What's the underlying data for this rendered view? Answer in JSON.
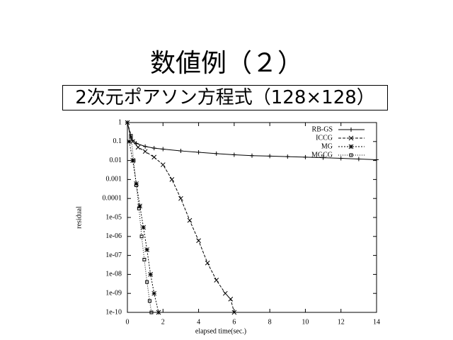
{
  "title": "数値例（２）",
  "subtitle": "2次元ポアソン方程式（128×128）",
  "chart_data": {
    "type": "line",
    "xlabel": "elapsed time(sec.)",
    "ylabel": "residual",
    "xlim": [
      0,
      14
    ],
    "ylim": [
      1e-10,
      1
    ],
    "ylog": true,
    "xticks": [
      0,
      2,
      4,
      6,
      8,
      10,
      12,
      14
    ],
    "yticks": [
      {
        "value": 1e-10,
        "label": "1e-10"
      },
      {
        "value": 1e-09,
        "label": "1e-09"
      },
      {
        "value": 1e-08,
        "label": "1e-08"
      },
      {
        "value": 1e-07,
        "label": "1e-07"
      },
      {
        "value": 1e-06,
        "label": "1e-06"
      },
      {
        "value": 1e-05,
        "label": "1e-05"
      },
      0.0001,
      0.001,
      0.01,
      0.1,
      1
    ],
    "legend": "upper right",
    "series": [
      {
        "name": "RB-GS",
        "color": "#000000",
        "marker": "plus",
        "dash": "none",
        "x": [
          0,
          0.2,
          0.5,
          1,
          1.5,
          2,
          3,
          4,
          5,
          6,
          7,
          8,
          9,
          10,
          11,
          12,
          13,
          14
        ],
        "values": [
          1,
          0.15,
          0.08,
          0.055,
          0.045,
          0.04,
          0.032,
          0.027,
          0.023,
          0.02,
          0.018,
          0.017,
          0.016,
          0.015,
          0.014,
          0.013,
          0.012,
          0.011
        ]
      },
      {
        "name": "ICCG",
        "color": "#000000",
        "marker": "cross",
        "dash": "4,2",
        "x": [
          0,
          0.3,
          0.6,
          1,
          1.5,
          2,
          2.5,
          3,
          3.5,
          4,
          4.5,
          5,
          5.5,
          5.8,
          6
        ],
        "values": [
          1,
          0.1,
          0.05,
          0.03,
          0.015,
          0.006,
          0.001,
          0.0001,
          7e-06,
          6e-07,
          4e-08,
          5e-09,
          1e-09,
          5e-10,
          1e-10
        ]
      },
      {
        "name": "MG",
        "color": "#000000",
        "marker": "star",
        "dash": "2,2",
        "x": [
          0.1,
          0.3,
          0.5,
          0.7,
          0.9,
          1.1,
          1.3,
          1.5,
          1.75
        ],
        "values": [
          0.1,
          0.01,
          0.0006,
          4e-05,
          3e-06,
          2e-07,
          1e-08,
          1e-09,
          1e-10
        ]
      },
      {
        "name": "MGCG",
        "color": "#000000",
        "marker": "square",
        "dash": "1,2",
        "x": [
          0.2,
          0.35,
          0.5,
          0.65,
          0.8,
          0.95,
          1.1,
          1.25,
          1.35
        ],
        "values": [
          0.2,
          0.01,
          0.0005,
          3e-05,
          1e-06,
          6e-08,
          4e-09,
          4e-10,
          1e-10
        ]
      }
    ]
  }
}
